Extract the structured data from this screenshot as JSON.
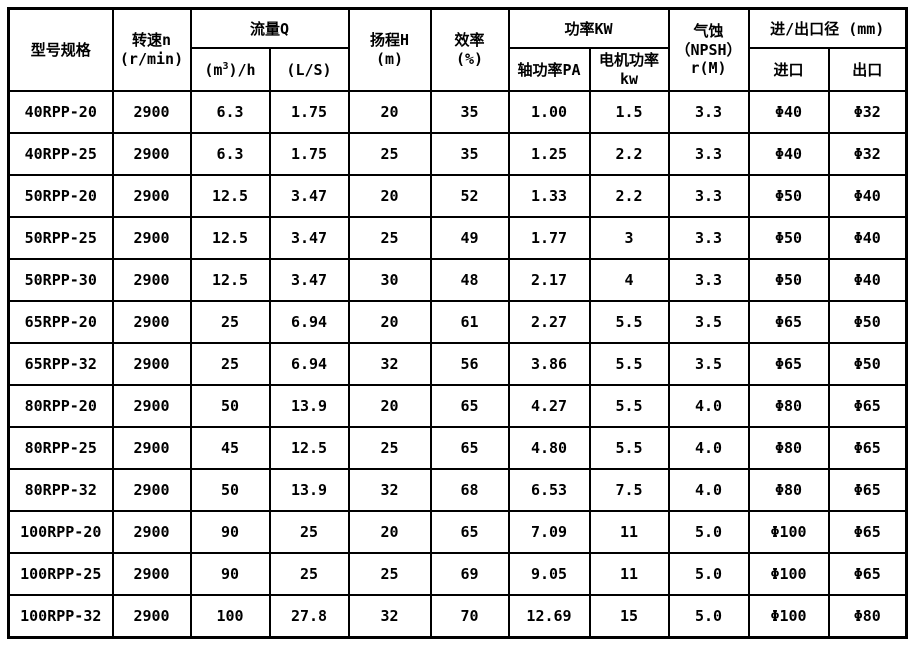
{
  "table": {
    "headers": {
      "model": "型号规格",
      "speed_line1": "转速n",
      "speed_line2": "(r/min)",
      "flow_group": "流量Q",
      "flow_m3h_pre": "(m",
      "flow_m3h_sup": "3",
      "flow_m3h_post": ")/h",
      "flow_ls": "(L/S)",
      "head_line1": "扬程H",
      "head_line2": "(m)",
      "eff_line1": "效率",
      "eff_line2": "(%)",
      "power_group": "功率KW",
      "shaft_power": "轴功率PA",
      "motor_power_line1": "电机功率",
      "motor_power_line2": "kw",
      "npsh_line1": "气蚀",
      "npsh_line2": "（NPSH）",
      "npsh_line3": "r(M)",
      "inlet_outlet_group": "进/出口径 (mm)",
      "inlet": "进口",
      "outlet": "出口"
    },
    "column_keys": [
      "model",
      "speed",
      "flow-m3h",
      "flow-ls",
      "head",
      "efficiency",
      "shaft-power",
      "motor-power",
      "npsh",
      "inlet",
      "outlet"
    ],
    "rows": [
      [
        "40RPP-20",
        "2900",
        "6.3",
        "1.75",
        "20",
        "35",
        "1.00",
        "1.5",
        "3.3",
        "Φ40",
        "Φ32"
      ],
      [
        "40RPP-25",
        "2900",
        "6.3",
        "1.75",
        "25",
        "35",
        "1.25",
        "2.2",
        "3.3",
        "Φ40",
        "Φ32"
      ],
      [
        "50RPP-20",
        "2900",
        "12.5",
        "3.47",
        "20",
        "52",
        "1.33",
        "2.2",
        "3.3",
        "Φ50",
        "Φ40"
      ],
      [
        "50RPP-25",
        "2900",
        "12.5",
        "3.47",
        "25",
        "49",
        "1.77",
        "3",
        "3.3",
        "Φ50",
        "Φ40"
      ],
      [
        "50RPP-30",
        "2900",
        "12.5",
        "3.47",
        "30",
        "48",
        "2.17",
        "4",
        "3.3",
        "Φ50",
        "Φ40"
      ],
      [
        "65RPP-20",
        "2900",
        "25",
        "6.94",
        "20",
        "61",
        "2.27",
        "5.5",
        "3.5",
        "Φ65",
        "Φ50"
      ],
      [
        "65RPP-32",
        "2900",
        "25",
        "6.94",
        "32",
        "56",
        "3.86",
        "5.5",
        "3.5",
        "Φ65",
        "Φ50"
      ],
      [
        "80RPP-20",
        "2900",
        "50",
        "13.9",
        "20",
        "65",
        "4.27",
        "5.5",
        "4.0",
        "Φ80",
        "Φ65"
      ],
      [
        "80RPP-25",
        "2900",
        "45",
        "12.5",
        "25",
        "65",
        "4.80",
        "5.5",
        "4.0",
        "Φ80",
        "Φ65"
      ],
      [
        "80RPP-32",
        "2900",
        "50",
        "13.9",
        "32",
        "68",
        "6.53",
        "7.5",
        "4.0",
        "Φ80",
        "Φ65"
      ],
      [
        "100RPP-20",
        "2900",
        "90",
        "25",
        "20",
        "65",
        "7.09",
        "11",
        "5.0",
        "Φ100",
        "Φ65"
      ],
      [
        "100RPP-25",
        "2900",
        "90",
        "25",
        "25",
        "69",
        "9.05",
        "11",
        "5.0",
        "Φ100",
        "Φ65"
      ],
      [
        "100RPP-32",
        "2900",
        "100",
        "27.8",
        "32",
        "70",
        "12.69",
        "15",
        "5.0",
        "Φ100",
        "Φ80"
      ]
    ]
  }
}
